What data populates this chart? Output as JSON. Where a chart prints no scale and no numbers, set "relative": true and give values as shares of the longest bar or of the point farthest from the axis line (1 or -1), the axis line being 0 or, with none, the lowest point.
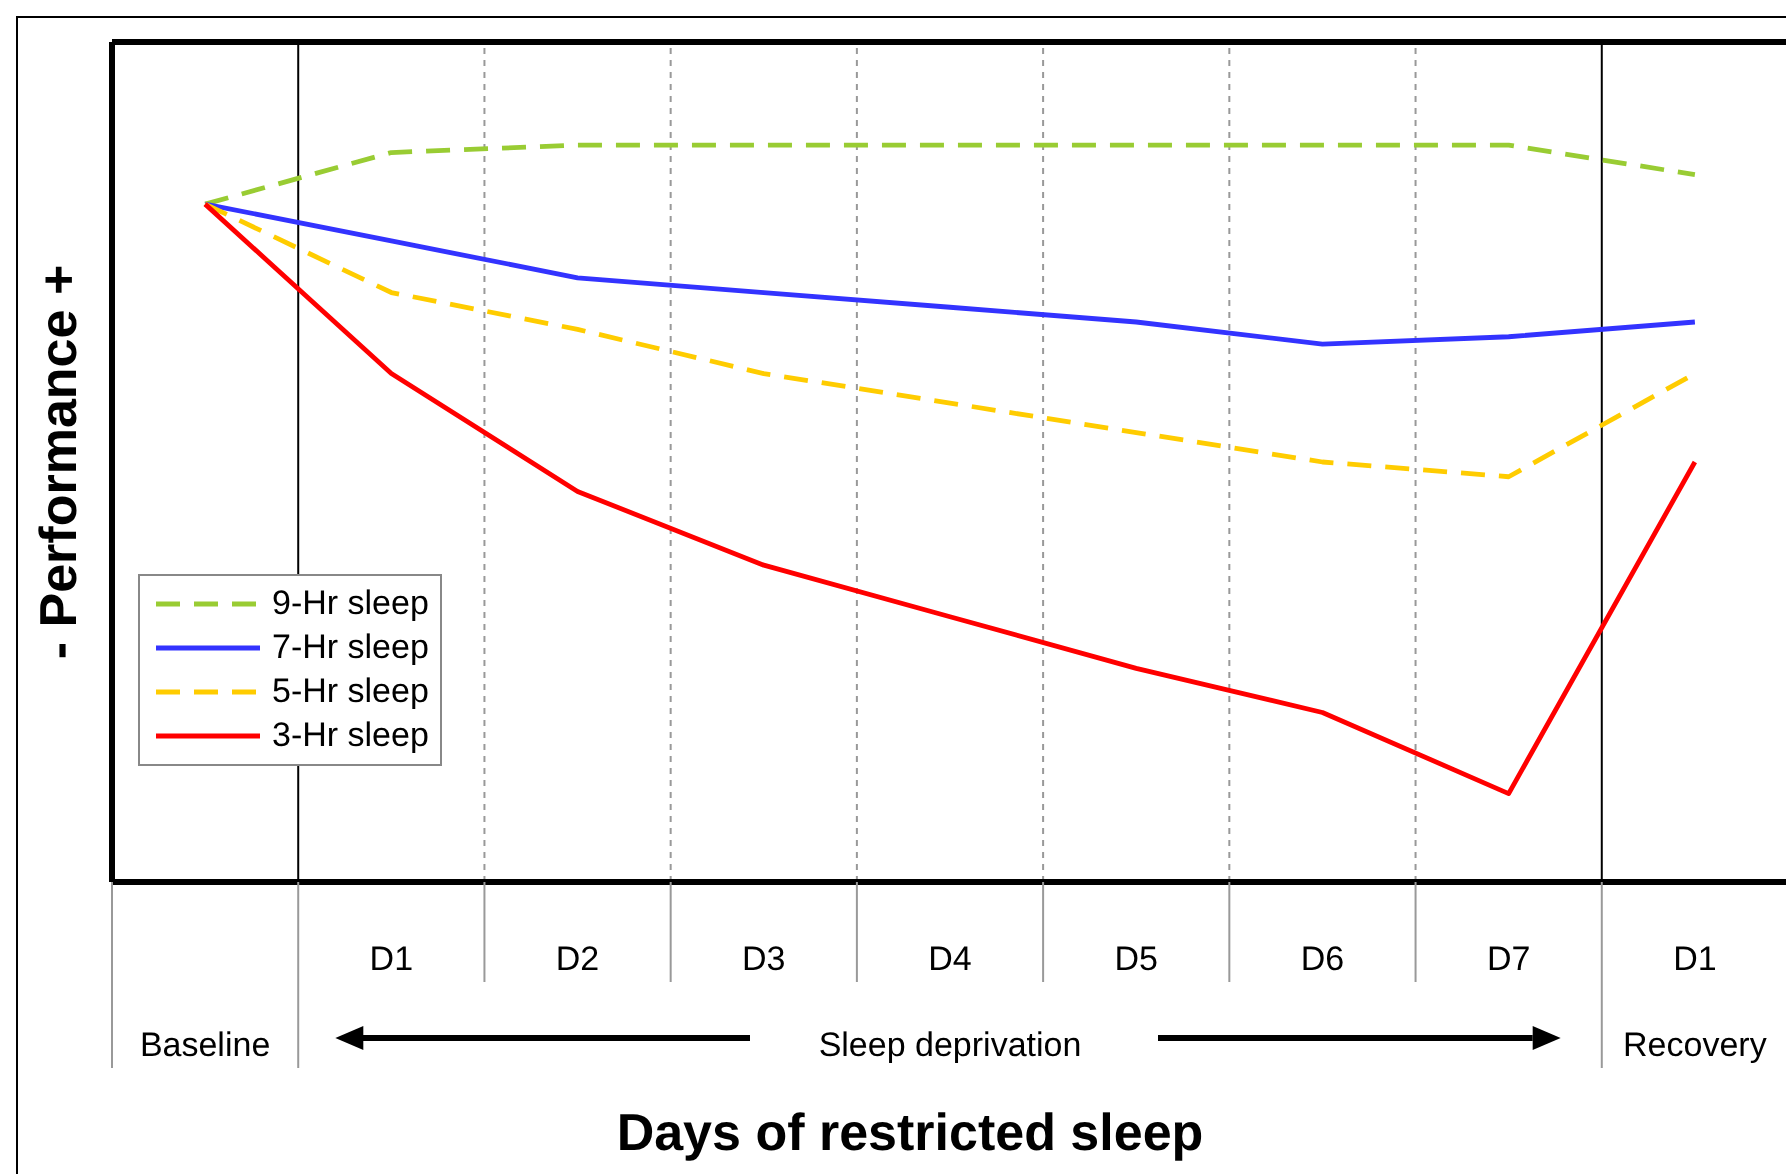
{
  "chart_data": {
    "type": "line",
    "relative": true,
    "xlabel": "Days of restricted sleep",
    "ylabel": "- Performance +",
    "categories": [
      null,
      "D1",
      "D2",
      "D3",
      "D4",
      "D5",
      "D6",
      "D7",
      "D1"
    ],
    "series": [
      {
        "name": "9-Hr sleep",
        "color": "#99cc33",
        "line_style": "dashed",
        "values": [
          0.92,
          0.99,
          1,
          1,
          1,
          1,
          1,
          1,
          0.96
        ]
      },
      {
        "name": "7-Hr sleep",
        "color": "#3333ff",
        "values": [
          0.92,
          0.87,
          0.82,
          0.8,
          0.78,
          0.76,
          0.73,
          0.74,
          0.76
        ]
      },
      {
        "name": "5-Hr sleep",
        "color": "#ffcc00",
        "line_style": "dashed",
        "values": [
          0.92,
          0.8,
          0.75,
          0.69,
          0.65,
          0.61,
          0.57,
          0.55,
          0.69
        ]
      },
      {
        "name": "3-Hr sleep",
        "color": "#ff0000",
        "values": [
          0.92,
          0.69,
          0.53,
          0.43,
          0.36,
          0.29,
          0.23,
          0.12,
          0.57
        ]
      }
    ],
    "annotations": [
      "Baseline",
      "Sleep deprivation",
      "Recovery"
    ],
    "grid": "x",
    "legend": "bottom left"
  }
}
